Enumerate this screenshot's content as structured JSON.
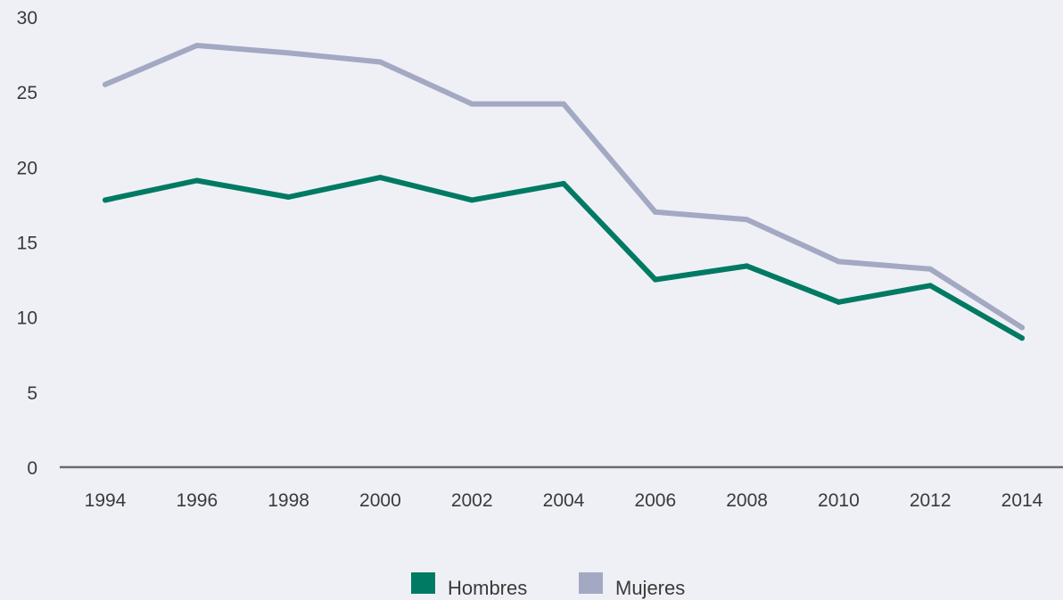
{
  "chart_data": {
    "type": "line",
    "x": [
      "1994",
      "1996",
      "1998",
      "2000",
      "2002",
      "2004",
      "2006",
      "2008",
      "2010",
      "2012",
      "2014"
    ],
    "yticks": [
      "0",
      "5",
      "10",
      "15",
      "20",
      "25",
      "30"
    ],
    "ylim": [
      0,
      30
    ],
    "grid": false,
    "legend_position": "bottom-center",
    "series": [
      {
        "name": "Hombres",
        "color": "#007a63",
        "values": [
          17.8,
          19.1,
          18.0,
          19.3,
          17.8,
          18.9,
          12.5,
          13.4,
          11.0,
          12.1,
          8.6
        ]
      },
      {
        "name": "Mujeres",
        "color": "#a3a8c3",
        "values": [
          25.5,
          28.1,
          27.6,
          27.0,
          24.2,
          24.2,
          17.0,
          16.5,
          13.7,
          13.2,
          9.3
        ]
      }
    ],
    "axis_color": "#6b6b6b"
  }
}
